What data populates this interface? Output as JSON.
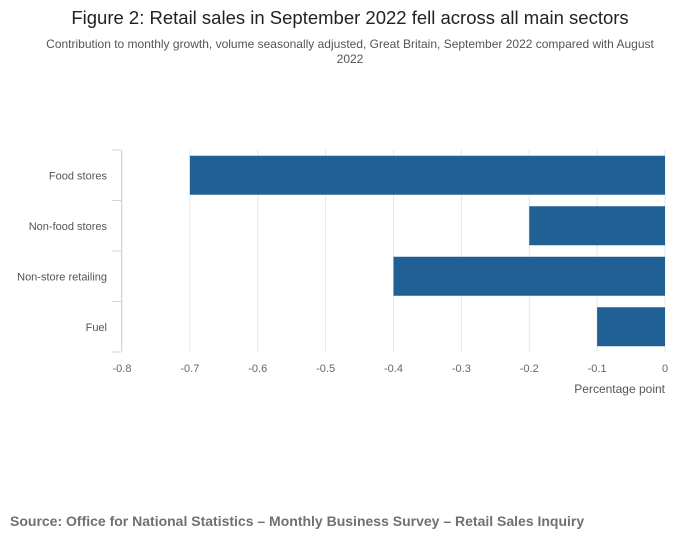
{
  "chart_data": {
    "type": "bar",
    "orientation": "horizontal",
    "title": "Figure 2: Retail sales in September 2022 fell across all main sectors",
    "subtitle": "Contribution to monthly growth, volume seasonally adjusted, Great Britain, September 2022 compared with August 2022",
    "categories": [
      "Food stores",
      "Non-food stores",
      "Non-store retailing",
      "Fuel"
    ],
    "values": [
      -0.7,
      -0.2,
      -0.4,
      -0.1
    ],
    "xlabel": "Percentage point",
    "ylabel": "",
    "xlim": [
      -0.8,
      0
    ],
    "xticks": [
      "-0.8",
      "-0.7",
      "-0.6",
      "-0.5",
      "-0.4",
      "-0.3",
      "-0.2",
      "-0.1",
      "0"
    ],
    "grid": true,
    "bar_color": "#206095"
  },
  "source": "Source: Office for National Statistics – Monthly Business Survey – Retail Sales Inquiry"
}
